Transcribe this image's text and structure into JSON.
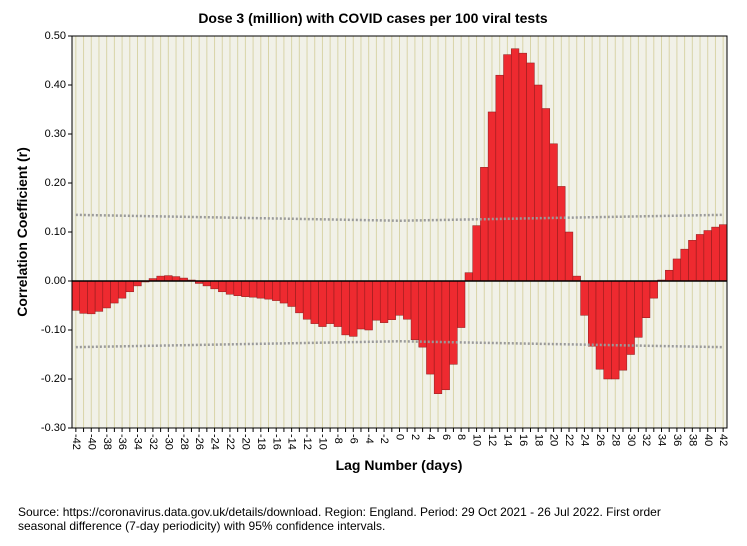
{
  "chart_data": {
    "type": "bar",
    "title": "Dose 3 (million) with COVID cases per 100 viral tests",
    "x_label": "Lag Number (days)",
    "y_label": "Correlation Coefficient (r)",
    "note": [
      "Source: https://coronavirus.data.gov.uk/details/download. Region: England. Period: 29 Oct 2021 - 26 Jul 2022. First order",
      "seasonal difference (7-day periodicity) with 95% confidence intervals."
    ],
    "categories": [
      -42,
      null,
      -40,
      null,
      -38,
      null,
      -36,
      null,
      -34,
      null,
      -32,
      null,
      -30,
      null,
      -28,
      null,
      -26,
      null,
      -24,
      null,
      -22,
      null,
      -20,
      null,
      -18,
      null,
      -16,
      null,
      -14,
      null,
      -12,
      null,
      -10,
      null,
      -8,
      null,
      -6,
      null,
      -4,
      null,
      -2,
      null,
      0,
      null,
      2,
      null,
      4,
      null,
      6,
      null,
      8,
      null,
      10,
      null,
      12,
      null,
      14,
      null,
      16,
      null,
      18,
      null,
      20,
      null,
      22,
      null,
      24,
      null,
      26,
      null,
      28,
      null,
      30,
      null,
      32,
      null,
      34,
      null,
      36,
      null,
      38,
      null,
      40,
      null,
      42
    ],
    "xlim": [
      -42,
      42
    ],
    "values": [
      -0.06,
      -0.066,
      -0.067,
      -0.062,
      -0.055,
      -0.045,
      -0.035,
      -0.022,
      -0.01,
      -0.002,
      0.005,
      0.01,
      0.011,
      0.009,
      0.006,
      0.002,
      -0.005,
      -0.01,
      -0.016,
      -0.022,
      -0.027,
      -0.03,
      -0.032,
      -0.033,
      -0.035,
      -0.037,
      -0.04,
      -0.045,
      -0.052,
      -0.065,
      -0.078,
      -0.087,
      -0.093,
      -0.087,
      -0.093,
      -0.11,
      -0.113,
      -0.098,
      -0.1,
      -0.08,
      -0.085,
      -0.079,
      -0.07,
      -0.078,
      -0.12,
      -0.135,
      -0.19,
      -0.23,
      -0.222,
      -0.17,
      -0.095,
      0.017,
      0.113,
      0.232,
      0.345,
      0.42,
      0.462,
      0.474,
      0.465,
      0.445,
      0.4,
      0.352,
      0.28,
      0.193,
      0.1,
      0.01,
      -0.07,
      -0.133,
      -0.18,
      -0.2,
      -0.2,
      -0.182,
      -0.15,
      -0.115,
      -0.075,
      -0.035,
      0.002,
      0.022,
      0.045,
      0.065,
      0.083,
      0.095,
      0.103,
      0.11,
      0.115
    ],
    "color": "#ee2a30",
    "confidence_interval": {
      "color": "#9a9a9a",
      "x": [
        -42,
        0,
        42
      ],
      "upper": [
        0.135,
        0.123,
        0.135
      ],
      "lower": [
        -0.135,
        -0.123,
        -0.135
      ]
    },
    "ylim": [
      -0.3,
      0.5
    ],
    "yticks": [
      {
        "value": 0.5,
        "label": "0.50"
      },
      {
        "value": 0.4,
        "label": "0.40"
      },
      {
        "value": 0.3,
        "label": "0.30"
      },
      {
        "value": 0.2,
        "label": "0.20"
      },
      {
        "value": 0.1,
        "label": "0.10"
      },
      {
        "value": 0,
        "label": "0.00"
      },
      {
        "value": -0.1,
        "label": "-0.10"
      },
      {
        "value": -0.2,
        "label": "-0.20"
      },
      {
        "value": -0.3,
        "label": "-0.30"
      }
    ],
    "grid": true
  }
}
